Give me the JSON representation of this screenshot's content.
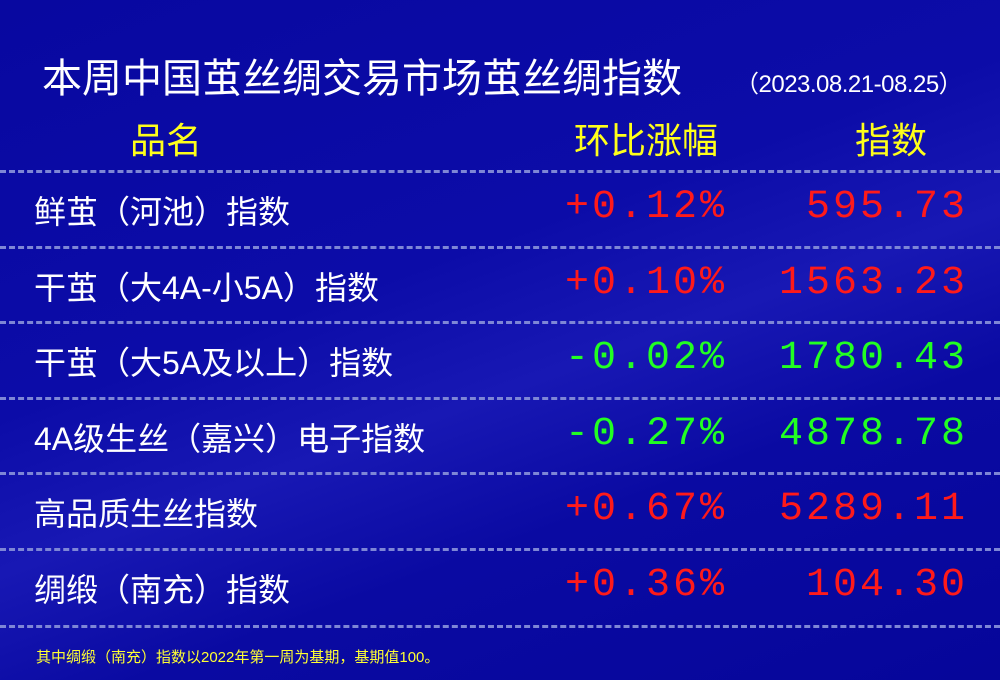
{
  "title": "本周中国茧丝绸交易市场茧丝绸指数",
  "date_range": "（2023.08.21-08.25）",
  "headers": {
    "name": "品名",
    "change": "环比涨幅",
    "index": "指数"
  },
  "colors": {
    "up": "#ff1a1a",
    "down": "#22ff22",
    "header": "#ffff1a",
    "background": "#0a0aa2"
  },
  "rows": [
    {
      "name": "鲜茧（河池）指数",
      "change": "+0.12%",
      "index": "595.73",
      "direction": "up"
    },
    {
      "name": "干茧（大4A-小5A）指数",
      "change": "+0.10%",
      "index": "1563.23",
      "direction": "up"
    },
    {
      "name": "干茧（大5A及以上）指数",
      "change": "-0.02%",
      "index": "1780.43",
      "direction": "down"
    },
    {
      "name": "4A级生丝（嘉兴）电子指数",
      "change": "-0.27%",
      "index": "4878.78",
      "direction": "down"
    },
    {
      "name": "高品质生丝指数",
      "change": "+0.67%",
      "index": "5289.11",
      "direction": "up"
    },
    {
      "name": "绸缎（南充）指数",
      "change": "+0.36%",
      "index": "104.30",
      "direction": "up"
    }
  ],
  "footnote": "其中绸缎（南充）指数以2022年第一周为基期，基期值100。"
}
